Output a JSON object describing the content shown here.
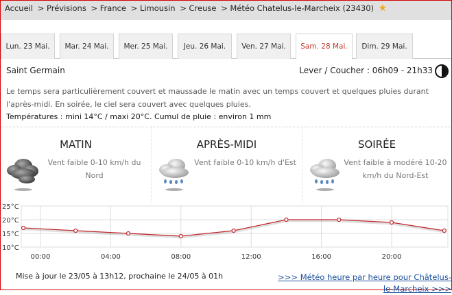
{
  "breadcrumb": [
    "Accueil",
    "> Prévisions",
    "> France",
    "> Limousin",
    "> Creuse",
    "> Météo Chatelus-le-Marcheix (23430)"
  ],
  "tabs": [
    {
      "label": "Lun. 23 Mai.",
      "active": false
    },
    {
      "label": "Mar. 24 Mai.",
      "active": false
    },
    {
      "label": "Mer. 25 Mai.",
      "active": false
    },
    {
      "label": "Jeu. 26 Mai.",
      "active": false
    },
    {
      "label": "Ven. 27 Mai.",
      "active": false
    },
    {
      "label": "Sam. 28 Mai.",
      "active": true
    },
    {
      "label": "Dim. 29 Mai.",
      "active": false
    }
  ],
  "location": "Saint Germain",
  "sun": "Lever / Coucher : 06h09 - 21h33",
  "description": "Le temps sera particulièrement couvert et maussade le matin avec un temps couvert et quelques pluies durant l'après-midi. En soirée, le ciel sera couvert avec quelques pluies.",
  "summary": "Températures : mini 14°C / maxi 20°C. Cumul de pluie : environ 1 mm",
  "periods": [
    {
      "title": "MATIN",
      "icon": "heavy-cloud-icon",
      "wind": "Vent faible 0-10 km/h du Nord"
    },
    {
      "title": "APRÈS-MIDI",
      "icon": "cloud-rain-icon",
      "wind": "Vent faible 0-10 km/h d'Est"
    },
    {
      "title": "SOIRÉE",
      "icon": "cloud-rain-icon",
      "wind": "Vent faible à modéré 10-20 km/h du Nord-Est"
    }
  ],
  "chart_data": {
    "type": "line",
    "x_ticks": [
      "00:00",
      "04:00",
      "08:00",
      "12:00",
      "16:00",
      "20:00"
    ],
    "y_ticks": [
      "25°C",
      "20°C",
      "15°C",
      "10°C"
    ],
    "ylim": [
      10,
      25
    ],
    "x_hours": [
      -1,
      2,
      5,
      8,
      11,
      14,
      17,
      20,
      23
    ],
    "values": [
      17,
      16,
      15,
      14,
      16,
      20,
      20,
      19,
      16
    ],
    "color": "#c0282d",
    "grid": true
  },
  "footer": {
    "update": "Mise à jour le 23/05 à 13h12, prochaine le 24/05 à 01h",
    "link": ">>> Météo heure par heure pour Châtelus-le-Marcheix >>>"
  }
}
